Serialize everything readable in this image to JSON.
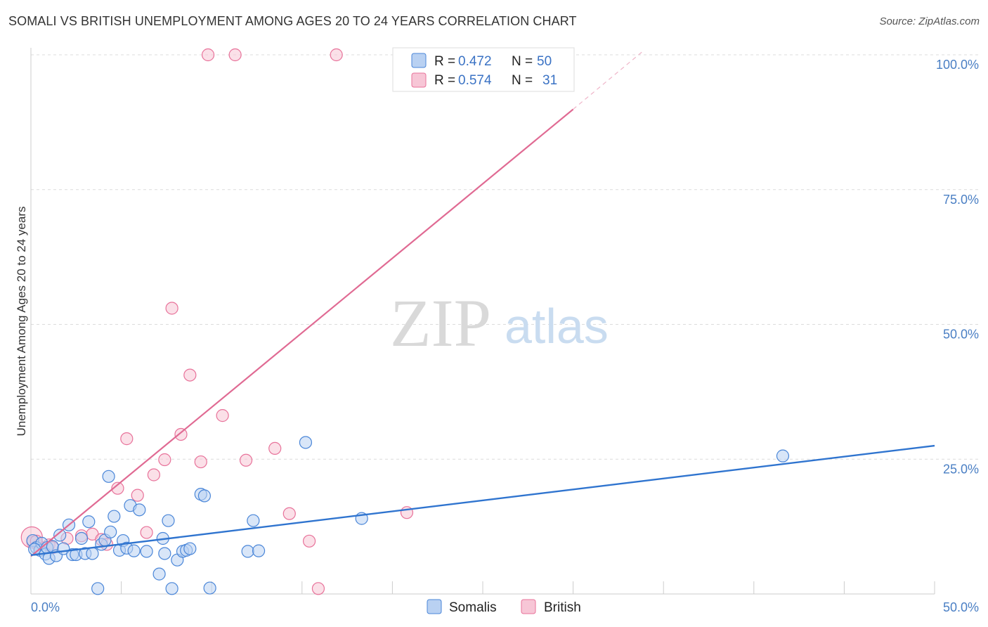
{
  "title": "SOMALI VS BRITISH UNEMPLOYMENT AMONG AGES 20 TO 24 YEARS CORRELATION CHART",
  "source": "Source: ZipAtlas.com",
  "watermark": {
    "zip": "ZIP",
    "atlas": "atlas"
  },
  "legend": {
    "somali": {
      "r_label": "R = ",
      "r_value": "0.472",
      "n_label": "N = ",
      "n_value": "50"
    },
    "british": {
      "r_label": "R = ",
      "r_value": "0.574",
      "n_label": "N = ",
      "n_value": "31"
    }
  },
  "bottom_legend": {
    "somali": "Somalis",
    "british": "British"
  },
  "chart_data": {
    "type": "scatter",
    "title": "SOMALI VS BRITISH UNEMPLOYMENT AMONG AGES 20 TO 24 YEARS CORRELATION CHART",
    "xlabel": "",
    "ylabel": "Unemployment Among Ages 20 to 24 years",
    "xlim": [
      0,
      50
    ],
    "ylim": [
      0,
      100
    ],
    "x_tick_labels": {
      "min": "0.0%",
      "max": "50.0%"
    },
    "y_ticks": [
      {
        "value": 25,
        "label": "25.0%"
      },
      {
        "value": 50,
        "label": "50.0%"
      },
      {
        "value": 75,
        "label": "75.0%"
      },
      {
        "value": 100,
        "label": "100.0%"
      }
    ],
    "colors": {
      "somali": "#4a86d8",
      "british": "#e8729a",
      "somali_fill": "#b9d1f2",
      "british_fill": "#f7c6d6"
    },
    "series": [
      {
        "name": "Somalis",
        "trend": {
          "x0": 0,
          "y0": 7.2,
          "x1": 50,
          "y1": 27.5
        },
        "points": [
          [
            0.1,
            9.9
          ],
          [
            0.3,
            8.6
          ],
          [
            0.5,
            8.1
          ],
          [
            0.6,
            9.4
          ],
          [
            0.8,
            7.4
          ],
          [
            0.9,
            8.6
          ],
          [
            1.0,
            6.6
          ],
          [
            1.2,
            8.8
          ],
          [
            1.4,
            7.1
          ],
          [
            1.6,
            10.9
          ],
          [
            1.8,
            8.4
          ],
          [
            2.1,
            12.8
          ],
          [
            2.3,
            7.3
          ],
          [
            2.5,
            7.3
          ],
          [
            2.8,
            10.3
          ],
          [
            3.0,
            7.5
          ],
          [
            3.2,
            13.4
          ],
          [
            3.4,
            7.5
          ],
          [
            3.7,
            1.0
          ],
          [
            3.9,
            9.2
          ],
          [
            4.1,
            10.0
          ],
          [
            4.3,
            21.8
          ],
          [
            4.4,
            11.5
          ],
          [
            4.6,
            14.4
          ],
          [
            4.9,
            8.1
          ],
          [
            5.1,
            9.9
          ],
          [
            5.3,
            8.5
          ],
          [
            5.5,
            16.4
          ],
          [
            5.7,
            8.0
          ],
          [
            6.0,
            15.6
          ],
          [
            6.4,
            7.9
          ],
          [
            7.1,
            3.7
          ],
          [
            7.3,
            10.3
          ],
          [
            7.4,
            7.5
          ],
          [
            7.6,
            13.6
          ],
          [
            7.8,
            1.0
          ],
          [
            8.1,
            6.3
          ],
          [
            8.4,
            7.9
          ],
          [
            8.6,
            8.1
          ],
          [
            8.8,
            8.4
          ],
          [
            9.4,
            18.5
          ],
          [
            9.6,
            18.2
          ],
          [
            9.9,
            1.1
          ],
          [
            12.0,
            7.9
          ],
          [
            12.3,
            13.6
          ],
          [
            12.6,
            8.0
          ],
          [
            15.2,
            28.1
          ],
          [
            18.3,
            14.0
          ],
          [
            41.6,
            25.6
          ],
          [
            0.2,
            8.3
          ]
        ]
      },
      {
        "name": "British",
        "trend": {
          "x0": 0,
          "y0": 7.0,
          "x1": 30,
          "y1": 89.9
        },
        "trend_dashed": {
          "x0": 30,
          "y0": 89.9,
          "x1": 33.8,
          "y1": 100.5
        },
        "points": [
          [
            0.1,
            9.6
          ],
          [
            0.4,
            9.0
          ],
          [
            1.0,
            9.1
          ],
          [
            1.2,
            8.6
          ],
          [
            2.0,
            10.3
          ],
          [
            2.8,
            10.8
          ],
          [
            3.4,
            11.1
          ],
          [
            3.9,
            10.1
          ],
          [
            4.2,
            9.2
          ],
          [
            4.8,
            19.6
          ],
          [
            5.3,
            28.8
          ],
          [
            5.9,
            18.3
          ],
          [
            6.4,
            11.4
          ],
          [
            6.8,
            22.1
          ],
          [
            7.4,
            24.9
          ],
          [
            7.8,
            53.0
          ],
          [
            8.3,
            29.6
          ],
          [
            8.8,
            40.6
          ],
          [
            9.4,
            24.5
          ],
          [
            9.8,
            100
          ],
          [
            10.6,
            33.1
          ],
          [
            11.3,
            100
          ],
          [
            11.9,
            24.8
          ],
          [
            13.5,
            27.0
          ],
          [
            14.3,
            14.9
          ],
          [
            15.4,
            9.8
          ],
          [
            15.9,
            1.0
          ],
          [
            16.9,
            100
          ],
          [
            20.8,
            15.1
          ],
          [
            0.05,
            10.5
          ],
          [
            0.3,
            9.8
          ]
        ]
      }
    ]
  }
}
